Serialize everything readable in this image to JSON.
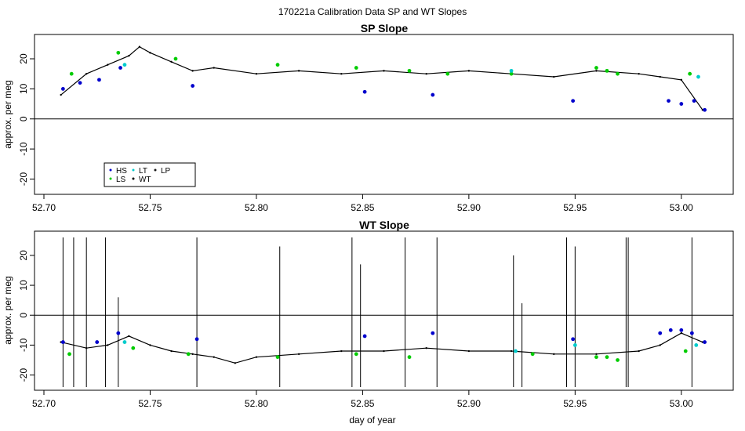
{
  "figure": {
    "suptitle": "170221a   Calibration Data SP and WT Slopes",
    "xlabel": "day of year"
  },
  "legend": {
    "entries": [
      {
        "label": "HS",
        "color": "#0000cc"
      },
      {
        "label": "LS",
        "color": "#00cc00"
      },
      {
        "label": "LT",
        "color": "#00cccc"
      },
      {
        "label": "WT",
        "color": "#000000"
      },
      {
        "label": "LP",
        "color": "#1a1a1a"
      }
    ]
  },
  "chart_data": [
    {
      "type": "line",
      "title": "SP Slope",
      "xlabel": "",
      "ylabel": "approx. per meg",
      "xlim": [
        52.7,
        53.02
      ],
      "ylim": [
        -23,
        26
      ],
      "xticks": [
        "52.70",
        "52.75",
        "52.80",
        "52.85",
        "52.90",
        "52.95",
        "53.00"
      ],
      "yticks": [
        "-20",
        "-10",
        "0",
        "10",
        "20"
      ],
      "hline": 0,
      "legend_position": "bottom-left",
      "series": [
        {
          "name": "WT",
          "color": "#000000",
          "x": [
            52.708,
            52.72,
            52.73,
            52.74,
            52.745,
            52.75,
            52.76,
            52.77,
            52.78,
            52.8,
            52.82,
            52.84,
            52.86,
            52.88,
            52.9,
            52.92,
            52.94,
            52.96,
            52.98,
            52.99,
            53.0,
            53.01
          ],
          "y": [
            8,
            15,
            18,
            21,
            24,
            22,
            19,
            16,
            17,
            15,
            16,
            15,
            16,
            15,
            16,
            15,
            14,
            16,
            15,
            14,
            13,
            3
          ]
        },
        {
          "name": "HS",
          "color": "#0000cc",
          "x": [
            52.709,
            52.717,
            52.726,
            52.736,
            52.77,
            52.851,
            52.883,
            52.949,
            52.994,
            53.0,
            53.006,
            53.011
          ],
          "y": [
            10,
            12,
            13,
            17,
            11,
            9,
            8,
            6,
            6,
            5,
            6,
            3
          ]
        },
        {
          "name": "LS",
          "color": "#00cc00",
          "x": [
            52.713,
            52.735,
            52.762,
            52.81,
            52.847,
            52.872,
            52.89,
            52.92,
            52.96,
            52.965,
            52.97,
            53.004
          ],
          "y": [
            15,
            22,
            20,
            18,
            17,
            16,
            15,
            15,
            17,
            16,
            15,
            15
          ]
        },
        {
          "name": "LT",
          "color": "#00cccc",
          "x": [
            52.738,
            52.92,
            53.008
          ],
          "y": [
            18,
            16,
            14
          ]
        }
      ]
    },
    {
      "type": "line",
      "title": "WT Slope",
      "xlabel": "day of year",
      "ylabel": "approx. per meg",
      "xlim": [
        52.7,
        53.02
      ],
      "ylim": [
        -23,
        26
      ],
      "xticks": [
        "52.70",
        "52.75",
        "52.80",
        "52.85",
        "52.90",
        "52.95",
        "53.00"
      ],
      "yticks": [
        "-20",
        "-10",
        "0",
        "10",
        "20"
      ],
      "hline": 0,
      "series": [
        {
          "name": "WT",
          "color": "#000000",
          "x": [
            52.708,
            52.72,
            52.73,
            52.74,
            52.75,
            52.76,
            52.77,
            52.78,
            52.79,
            52.8,
            52.82,
            52.84,
            52.86,
            52.88,
            52.9,
            52.92,
            52.94,
            52.96,
            52.98,
            52.99,
            53.0,
            53.01
          ],
          "y": [
            -9,
            -11,
            -10,
            -7,
            -10,
            -12,
            -13,
            -14,
            -16,
            -14,
            -13,
            -12,
            -12,
            -11,
            -12,
            -12,
            -13,
            -13,
            -12,
            -10,
            -6,
            -9
          ]
        },
        {
          "name": "HS",
          "color": "#0000cc",
          "x": [
            52.709,
            52.725,
            52.735,
            52.772,
            52.851,
            52.883,
            52.949,
            52.99,
            52.995,
            53.0,
            53.005,
            53.011
          ],
          "y": [
            -9,
            -9,
            -6,
            -8,
            -7,
            -6,
            -8,
            -6,
            -5,
            -5,
            -6,
            -9
          ]
        },
        {
          "name": "LS",
          "color": "#00cc00",
          "x": [
            52.712,
            52.742,
            52.768,
            52.81,
            52.847,
            52.872,
            52.93,
            52.96,
            52.965,
            52.97,
            53.002
          ],
          "y": [
            -13,
            -11,
            -13,
            -14,
            -13,
            -14,
            -13,
            -14,
            -14,
            -15,
            -12
          ]
        },
        {
          "name": "LT",
          "color": "#00cccc",
          "x": [
            52.738,
            52.922,
            52.95,
            53.007
          ],
          "y": [
            -9,
            -12,
            -10,
            -10
          ]
        }
      ],
      "spikes": {
        "color": "#000000",
        "x": [
          52.709,
          52.714,
          52.72,
          52.729,
          52.735,
          52.772,
          52.811,
          52.845,
          52.849,
          52.87,
          52.885,
          52.921,
          52.925,
          52.946,
          52.95,
          52.974,
          52.975,
          53.005
        ],
        "y": [
          26,
          26,
          26,
          26,
          6,
          26,
          23,
          26,
          17,
          26,
          26,
          20,
          4,
          26,
          23,
          26,
          26,
          26
        ]
      }
    }
  ]
}
